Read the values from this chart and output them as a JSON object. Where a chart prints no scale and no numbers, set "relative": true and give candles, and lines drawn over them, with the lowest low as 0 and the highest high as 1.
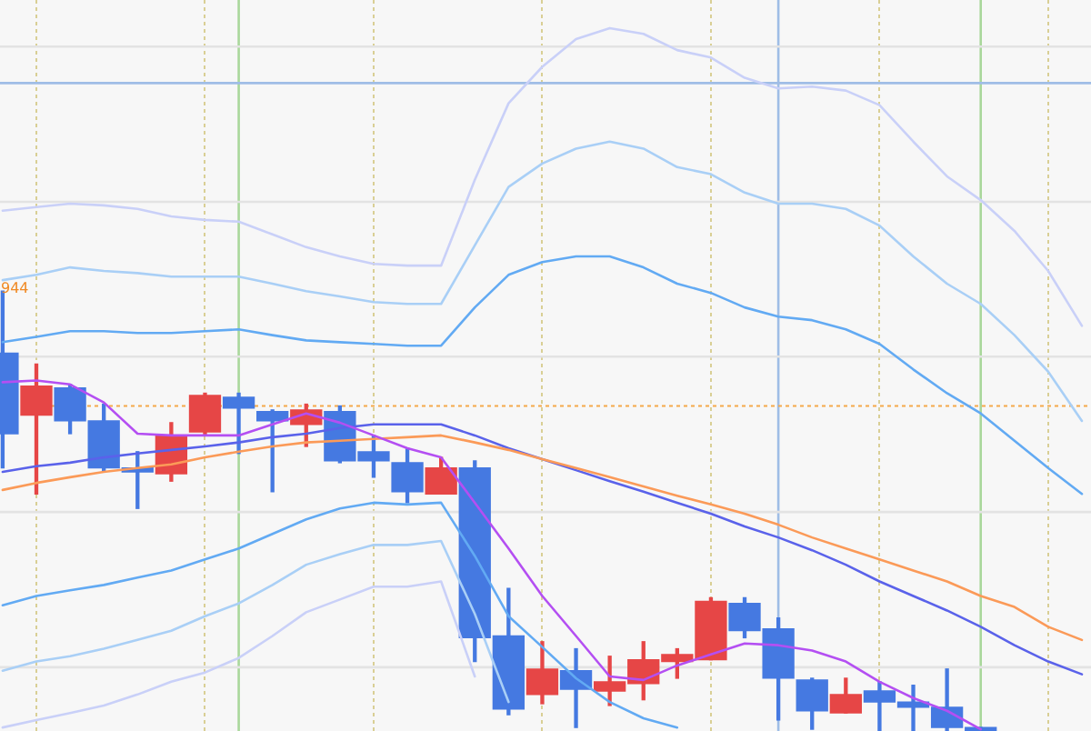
{
  "chart_data": {
    "type": "candlestick",
    "relative": true,
    "grid": "x",
    "categories": [
      null,
      null,
      null,
      null,
      null,
      null,
      null,
      null,
      null,
      null,
      null,
      null,
      null,
      null,
      null,
      null,
      null,
      null,
      null,
      null,
      null,
      null,
      null,
      null,
      null,
      null,
      null,
      null,
      null,
      null,
      null,
      null,
      null
    ],
    "ohlc": [
      [
        0.859,
        1,
        0.598,
        0.676
      ],
      [
        0.718,
        0.834,
        0.539,
        0.784
      ],
      [
        0.78,
        0.788,
        0.676,
        0.705
      ],
      [
        0.705,
        0.743,
        0.589,
        0.598
      ],
      [
        0.598,
        0.635,
        0.506,
        0.589
      ],
      [
        0.585,
        0.701,
        0.568,
        0.672
      ],
      [
        0.68,
        0.768,
        0.672,
        0.763
      ],
      [
        0.759,
        0.768,
        0.631,
        0.734
      ],
      [
        0.726,
        0.73,
        0.544,
        0.705
      ],
      [
        0.697,
        0.743,
        0.647,
        0.73
      ],
      [
        0.726,
        0.739,
        0.61,
        0.614
      ],
      [
        0.635,
        0.672,
        0.577,
        0.614
      ],
      [
        0.61,
        0.643,
        0.519,
        0.544
      ],
      [
        0.539,
        0.622,
        0.539,
        0.598
      ],
      [
        0.598,
        0.614,
        0.158,
        0.212
      ],
      [
        0.216,
        0.324,
        0.037,
        0.05
      ],
      [
        0.083,
        0.203,
        0.062,
        0.141
      ],
      [
        0.137,
        0.187,
        0.008,
        0.095
      ],
      [
        0.091,
        0.17,
        0.058,
        0.112
      ],
      [
        0.108,
        0.203,
        0.071,
        0.162
      ],
      [
        0.158,
        0.187,
        0.12,
        0.174
      ],
      [
        0.162,
        0.303,
        0.162,
        0.295
      ],
      [
        0.29,
        0.303,
        0.212,
        0.228
      ],
      [
        0.232,
        0.257,
        0.025,
        0.12
      ],
      [
        0.116,
        0.12,
        0.004,
        0.046
      ],
      [
        0.041,
        0.12,
        0.041,
        0.083
      ],
      [
        0.091,
        0.112,
        0,
        0.066
      ],
      [
        0.066,
        0.104,
        0,
        0.054
      ],
      [
        0.054,
        0.141,
        0,
        0.008
      ],
      [
        0.008,
        0.008,
        0,
        0
      ],
      null,
      null,
      null
    ],
    "colors": [
      "#4579e1",
      "#e64646",
      "#4579e1",
      "#4579e1",
      "#4579e1",
      "#e64646",
      "#e64646",
      "#4579e1",
      "#4579e1",
      "#e64646",
      "#4579e1",
      "#4579e1",
      "#4579e1",
      "#e64646",
      "#4579e1",
      "#4579e1",
      "#e64646",
      "#4579e1",
      "#e64646",
      "#e64646",
      "#e64646",
      "#e64646",
      "#4579e1",
      "#4579e1",
      "#4579e1",
      "#e64646",
      "#4579e1",
      "#4579e1",
      "#4579e1",
      "#4579e1",
      null,
      null,
      null
    ],
    "series": [
      {
        "type": "line",
        "color": "#b44ff2",
        "values": [
          0.793,
          0.797,
          0.788,
          0.747,
          0.676,
          0.672,
          0.672,
          0.672,
          0.697,
          0.722,
          0.701,
          0.672,
          0.643,
          0.622,
          0.519,
          0.415,
          0.307,
          0.216,
          0.124,
          0.116,
          0.149,
          0.174,
          0.199,
          0.195,
          0.183,
          0.158,
          0.112,
          0.075,
          0.046,
          0.004,
          null,
          null,
          null
        ]
      },
      {
        "type": "line",
        "color": "#fb9a58",
        "values": [
          0.548,
          0.564,
          0.577,
          0.589,
          0.598,
          0.606,
          0.622,
          0.635,
          0.647,
          0.656,
          0.66,
          0.664,
          0.668,
          0.672,
          0.656,
          0.639,
          0.618,
          0.598,
          0.577,
          0.556,
          0.535,
          0.515,
          0.494,
          0.469,
          0.44,
          0.415,
          0.39,
          0.365,
          0.34,
          0.307,
          0.282,
          0.237,
          0.207
        ]
      },
      {
        "type": "line",
        "color": "#5a62ea",
        "values": [
          0.589,
          0.602,
          0.61,
          0.622,
          0.631,
          0.639,
          0.647,
          0.656,
          0.668,
          0.676,
          0.689,
          0.697,
          0.697,
          0.697,
          0.672,
          0.643,
          0.618,
          0.593,
          0.568,
          0.544,
          0.519,
          0.494,
          0.465,
          0.44,
          0.411,
          0.378,
          0.34,
          0.307,
          0.274,
          0.237,
          0.195,
          0.158,
          0.129
        ]
      },
      {
        "type": "line",
        "color": "#62aaf3",
        "values": [
          0.884,
          0.896,
          0.909,
          0.909,
          0.905,
          0.905,
          0.909,
          0.913,
          0.9,
          0.888,
          0.884,
          0.88,
          0.876,
          0.876,
          0.963,
          1.037,
          1.066,
          1.079,
          1.079,
          1.054,
          1.017,
          0.996,
          0.963,
          0.942,
          0.934,
          0.913,
          0.88,
          0.822,
          0.768,
          0.722,
          0.66,
          0.598,
          0.539
        ]
      },
      {
        "type": "line",
        "color": "#a9cff6",
        "values": [
          1.025,
          1.037,
          1.054,
          1.046,
          1.041,
          1.033,
          1.033,
          1.033,
          1.017,
          1.0,
          0.988,
          0.975,
          0.971,
          0.971,
          1.104,
          1.237,
          1.29,
          1.324,
          1.34,
          1.324,
          1.282,
          1.266,
          1.224,
          1.199,
          1.199,
          1.187,
          1.149,
          1.079,
          1.017,
          0.971,
          0.9,
          0.817,
          0.705
        ]
      },
      {
        "type": "line",
        "color": "#c9d0f8",
        "values": [
          1.183,
          1.191,
          1.199,
          1.195,
          1.187,
          1.17,
          1.162,
          1.158,
          1.129,
          1.1,
          1.079,
          1.062,
          1.058,
          1.058,
          1.253,
          1.427,
          1.51,
          1.573,
          1.598,
          1.585,
          1.548,
          1.531,
          1.485,
          1.461,
          1.465,
          1.456,
          1.423,
          1.34,
          1.261,
          1.207,
          1.137,
          1.046,
          0.921
        ]
      },
      {
        "type": "line",
        "color": "#62aaf3",
        "values": [
          0.286,
          0.307,
          0.32,
          0.332,
          0.349,
          0.365,
          0.39,
          0.415,
          0.448,
          0.481,
          0.506,
          0.519,
          0.515,
          0.519,
          0.398,
          0.261,
          0.191,
          0.12,
          0.066,
          0.029,
          0.008,
          null,
          null,
          null,
          null,
          null,
          null,
          null,
          null,
          null,
          null,
          null,
          null
        ]
      },
      {
        "type": "line",
        "color": "#a9cff6",
        "values": [
          0.137,
          0.158,
          0.17,
          0.187,
          0.207,
          0.228,
          0.261,
          0.29,
          0.332,
          0.378,
          0.402,
          0.423,
          0.423,
          0.432,
          0.266,
          0.066,
          null,
          null,
          null,
          null,
          null,
          null,
          null,
          null,
          null,
          null,
          null,
          null,
          null,
          null,
          null,
          null,
          null
        ]
      },
      {
        "type": "line",
        "color": "#c9d0f8",
        "values": [
          0.008,
          0.025,
          0.041,
          0.058,
          0.083,
          0.112,
          0.133,
          0.166,
          0.216,
          0.27,
          0.299,
          0.328,
          0.328,
          0.34,
          0.124,
          null,
          null,
          null,
          null,
          null,
          null,
          null,
          null,
          null,
          null,
          null,
          null,
          null,
          null,
          null,
          null,
          null,
          null
        ]
      }
    ],
    "ref_lines": [
      {
        "axis": "y",
        "value": 0.145,
        "color": "#e3e3e3",
        "line_style": "solid"
      },
      {
        "axis": "y",
        "value": 0.498,
        "color": "#e3e3e3",
        "line_style": "solid"
      },
      {
        "axis": "y",
        "value": 0.851,
        "color": "#e3e3e3",
        "line_style": "solid"
      },
      {
        "axis": "y",
        "value": 1.203,
        "color": "#e3e3e3",
        "line_style": "solid"
      },
      {
        "axis": "y",
        "value": 1.556,
        "color": "#e3e3e3",
        "line_style": "solid"
      },
      {
        "axis": "y",
        "value": 0.739,
        "color": "#f5a94a",
        "line_style": "dotted"
      },
      {
        "axis": "y",
        "value": 1.473,
        "color": "#9fbde6",
        "line_style": "solid"
      }
    ],
    "annotations": [
      "944"
    ]
  }
}
